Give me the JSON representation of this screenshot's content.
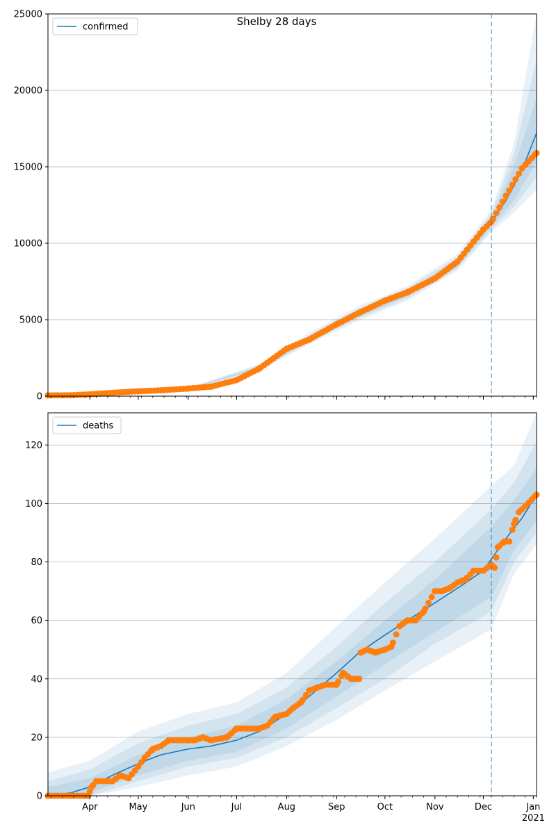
{
  "figure": {
    "title": "Shelby 28 days",
    "forecast_start": "2020-12-06",
    "colors": {
      "model_line": "#1f77b4",
      "observed": "#ff7f0e",
      "band": "#1f77b4",
      "grid": "#b0b0b0",
      "vline": "#1f77b4"
    }
  },
  "chart_data": [
    {
      "type": "line",
      "legend": "confirmed",
      "legend_position": "top-left",
      "grid": "y",
      "x_range": [
        "2020-03-06",
        "2021-01-03"
      ],
      "ylim": [
        0,
        25000
      ],
      "yticks": [
        0,
        5000,
        10000,
        15000,
        20000,
        25000
      ],
      "model": {
        "x": [
          "2020-03-06",
          "2020-04-01",
          "2020-05-01",
          "2020-06-01",
          "2020-06-15",
          "2020-07-01",
          "2020-07-15",
          "2020-08-01",
          "2020-08-15",
          "2020-09-01",
          "2020-09-15",
          "2020-10-01",
          "2020-10-15",
          "2020-11-01",
          "2020-11-15",
          "2020-12-01",
          "2020-12-06",
          "2020-12-15",
          "2020-12-25",
          "2021-01-03"
        ],
        "y": [
          40,
          120,
          300,
          480,
          620,
          1050,
          1850,
          3100,
          3750,
          4700,
          5400,
          6150,
          6700,
          7600,
          8700,
          10700,
          11400,
          12800,
          14800,
          17200
        ]
      },
      "bands": [
        {
          "x": [
            "2020-03-06",
            "2020-06-01",
            "2020-07-15",
            "2020-08-15",
            "2020-09-15",
            "2020-10-15",
            "2020-11-15",
            "2020-12-06",
            "2020-12-20",
            "2021-01-03"
          ],
          "lower": [
            0,
            430,
            1650,
            3400,
            4950,
            6250,
            8200,
            10700,
            12000,
            13500
          ],
          "upper": [
            90,
            540,
            2100,
            4150,
            5900,
            7200,
            9300,
            12200,
            16500,
            25000
          ]
        },
        {
          "x": [
            "2020-03-06",
            "2020-06-01",
            "2020-07-15",
            "2020-08-15",
            "2020-09-15",
            "2020-10-15",
            "2020-11-15",
            "2020-12-06",
            "2020-12-20",
            "2021-01-03"
          ],
          "lower": [
            10,
            445,
            1720,
            3520,
            5100,
            6400,
            8350,
            10900,
            12400,
            14300
          ],
          "upper": [
            75,
            520,
            2000,
            4000,
            5750,
            7050,
            9100,
            11950,
            15800,
            22000
          ]
        },
        {
          "x": [
            "2020-03-06",
            "2020-06-01",
            "2020-07-15",
            "2020-08-15",
            "2020-09-15",
            "2020-10-15",
            "2020-11-15",
            "2020-12-06",
            "2020-12-20",
            "2021-01-03"
          ],
          "lower": [
            20,
            460,
            1780,
            3620,
            5230,
            6530,
            8500,
            11100,
            12800,
            15300
          ],
          "upper": [
            60,
            505,
            1920,
            3880,
            5580,
            6880,
            8900,
            11700,
            15000,
            19500
          ]
        }
      ],
      "observed": {
        "x": [
          "2020-03-06",
          "2020-03-20",
          "2020-04-01",
          "2020-04-15",
          "2020-05-01",
          "2020-05-15",
          "2020-06-01",
          "2020-06-15",
          "2020-07-01",
          "2020-07-15",
          "2020-08-01",
          "2020-08-15",
          "2020-09-01",
          "2020-09-15",
          "2020-10-01",
          "2020-10-15",
          "2020-11-01",
          "2020-11-15",
          "2020-12-01",
          "2020-12-06",
          "2020-12-15",
          "2020-12-25",
          "2021-01-03"
        ],
        "y": [
          50,
          60,
          120,
          220,
          320,
          380,
          500,
          620,
          1050,
          1800,
          3100,
          3700,
          4700,
          5450,
          6250,
          6800,
          7700,
          8800,
          10900,
          11400,
          13100,
          14900,
          15900
        ]
      }
    },
    {
      "type": "line",
      "legend": "deaths",
      "legend_position": "top-left",
      "grid": "y",
      "x_range": [
        "2020-03-06",
        "2021-01-03"
      ],
      "ylim": [
        0,
        131
      ],
      "yticks": [
        0,
        20,
        40,
        60,
        80,
        100,
        120
      ],
      "model": {
        "x": [
          "2020-03-06",
          "2020-03-20",
          "2020-04-01",
          "2020-04-15",
          "2020-05-01",
          "2020-05-15",
          "2020-06-01",
          "2020-06-15",
          "2020-07-01",
          "2020-07-15",
          "2020-08-01",
          "2020-08-15",
          "2020-09-01",
          "2020-09-15",
          "2020-10-01",
          "2020-10-15",
          "2020-11-01",
          "2020-11-15",
          "2020-12-01",
          "2020-12-06",
          "2020-12-15",
          "2020-12-25",
          "2021-01-03"
        ],
        "y": [
          0,
          1,
          3,
          7,
          11,
          14,
          16,
          17,
          19,
          22,
          28,
          34,
          42,
          49,
          55,
          60,
          66,
          71,
          77,
          81,
          88,
          95,
          103
        ]
      },
      "bands": [
        {
          "x": [
            "2020-03-06",
            "2020-04-01",
            "2020-05-01",
            "2020-06-01",
            "2020-07-01",
            "2020-08-01",
            "2020-09-01",
            "2020-10-01",
            "2020-11-01",
            "2020-12-06",
            "2020-12-20",
            "2021-01-03"
          ],
          "lower": [
            0,
            0,
            3,
            7,
            10,
            17,
            26,
            36,
            46,
            57,
            76,
            86
          ],
          "upper": [
            8,
            12,
            22,
            28,
            32,
            42,
            58,
            73,
            88,
            106,
            113,
            131
          ]
        },
        {
          "x": [
            "2020-03-06",
            "2020-04-01",
            "2020-05-01",
            "2020-06-01",
            "2020-07-01",
            "2020-08-01",
            "2020-09-01",
            "2020-10-01",
            "2020-11-01",
            "2020-12-06",
            "2020-12-20",
            "2021-01-03"
          ],
          "lower": [
            0,
            0,
            5,
            10,
            13,
            20,
            30,
            40,
            52,
            63,
            80,
            90
          ],
          "upper": [
            5,
            9,
            18,
            24,
            28,
            37,
            51,
            66,
            80,
            98,
            107,
            121
          ]
        },
        {
          "x": [
            "2020-03-06",
            "2020-04-01",
            "2020-05-01",
            "2020-06-01",
            "2020-07-01",
            "2020-08-01",
            "2020-09-01",
            "2020-10-01",
            "2020-11-01",
            "2020-12-06",
            "2020-12-20",
            "2021-01-03"
          ],
          "lower": [
            0,
            1,
            7,
            12,
            15,
            23,
            34,
            45,
            56,
            68,
            84,
            94
          ],
          "upper": [
            3,
            6,
            14,
            20,
            24,
            33,
            46,
            60,
            74,
            92,
            101,
            112
          ]
        }
      ],
      "observed": {
        "x": [
          "2020-03-06",
          "2020-03-20",
          "2020-03-31",
          "2020-04-02",
          "2020-04-05",
          "2020-04-15",
          "2020-04-20",
          "2020-04-25",
          "2020-05-01",
          "2020-05-05",
          "2020-05-10",
          "2020-05-15",
          "2020-05-20",
          "2020-06-01",
          "2020-06-05",
          "2020-06-10",
          "2020-06-15",
          "2020-06-25",
          "2020-07-01",
          "2020-07-10",
          "2020-07-15",
          "2020-07-20",
          "2020-07-25",
          "2020-08-01",
          "2020-08-05",
          "2020-08-10",
          "2020-08-15",
          "2020-08-20",
          "2020-08-25",
          "2020-09-01",
          "2020-09-05",
          "2020-09-10",
          "2020-09-15",
          "2020-09-16",
          "2020-09-20",
          "2020-09-25",
          "2020-10-01",
          "2020-10-05",
          "2020-10-10",
          "2020-10-15",
          "2020-10-20",
          "2020-10-25",
          "2020-11-01",
          "2020-11-05",
          "2020-11-10",
          "2020-11-15",
          "2020-11-20",
          "2020-11-25",
          "2020-12-01",
          "2020-12-06",
          "2020-12-08",
          "2020-12-10",
          "2020-12-14",
          "2020-12-17",
          "2020-12-20",
          "2020-12-23",
          "2020-12-25",
          "2021-01-03"
        ],
        "y": [
          0,
          0,
          0,
          3,
          5,
          5,
          7,
          6,
          10,
          13,
          16,
          17,
          19,
          19,
          19,
          20,
          19,
          20,
          23,
          23,
          23,
          24,
          27,
          28,
          30,
          32,
          36,
          37,
          38,
          38,
          42,
          40,
          40,
          49,
          50,
          49,
          50,
          51,
          58,
          60,
          60,
          63,
          70,
          70,
          71,
          73,
          74,
          77,
          77,
          79,
          78,
          85,
          87,
          87,
          93,
          97,
          98,
          103
        ]
      }
    }
  ],
  "x_axis": {
    "ticks": [
      {
        "date": "2020-04-01",
        "label": "Apr"
      },
      {
        "date": "2020-05-01",
        "label": "May"
      },
      {
        "date": "2020-06-01",
        "label": "Jun"
      },
      {
        "date": "2020-07-01",
        "label": "Jul"
      },
      {
        "date": "2020-08-01",
        "label": "Aug"
      },
      {
        "date": "2020-09-01",
        "label": "Sep"
      },
      {
        "date": "2020-10-01",
        "label": "Oct"
      },
      {
        "date": "2020-11-01",
        "label": "Nov"
      },
      {
        "date": "2020-12-01",
        "label": "Dec"
      },
      {
        "date": "2021-01-01",
        "label": "Jan"
      }
    ],
    "year_label": "2021"
  }
}
